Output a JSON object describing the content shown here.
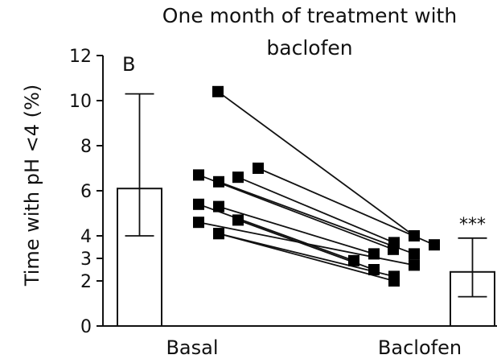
{
  "chart_data": {
    "type": "bar",
    "panel_label": "B",
    "title_lines": [
      "One month of treatment with",
      "baclofen"
    ],
    "ylabel": "Time with pH <4 (%)",
    "xlabel": "",
    "ylim": [
      0,
      12
    ],
    "yticks": [
      "0",
      "2",
      "3",
      "4",
      "6",
      "8",
      "10",
      "12"
    ],
    "categories": [
      "Basal",
      "Baclofen"
    ],
    "bars": [
      {
        "category": "Basal",
        "mean": 6.1,
        "error_low": 4.0,
        "error_high": 10.3
      },
      {
        "category": "Baclofen",
        "mean": 2.4,
        "error_low": 1.3,
        "error_high": 3.9
      }
    ],
    "significance": {
      "category": "Baclofen",
      "label": "***"
    },
    "paired_points": [
      {
        "basal": 10.4,
        "baclofen": 4.0
      },
      {
        "basal": 7.0,
        "baclofen": 3.6
      },
      {
        "basal": 6.7,
        "baclofen": 3.4
      },
      {
        "basal": 6.6,
        "baclofen": 3.7
      },
      {
        "basal": 6.4,
        "baclofen": 3.2
      },
      {
        "basal": 5.4,
        "baclofen": 2.9
      },
      {
        "basal": 5.3,
        "baclofen": 3.2
      },
      {
        "basal": 4.7,
        "baclofen": 2.5
      },
      {
        "basal": 4.6,
        "baclofen": 2.7
      },
      {
        "basal": 4.1,
        "baclofen": 2.0
      },
      {
        "basal": 4.1,
        "baclofen": 2.2
      }
    ],
    "colors": {
      "bar_fill": "#ffffff",
      "ink": "#111111",
      "marker": "#000000"
    }
  }
}
